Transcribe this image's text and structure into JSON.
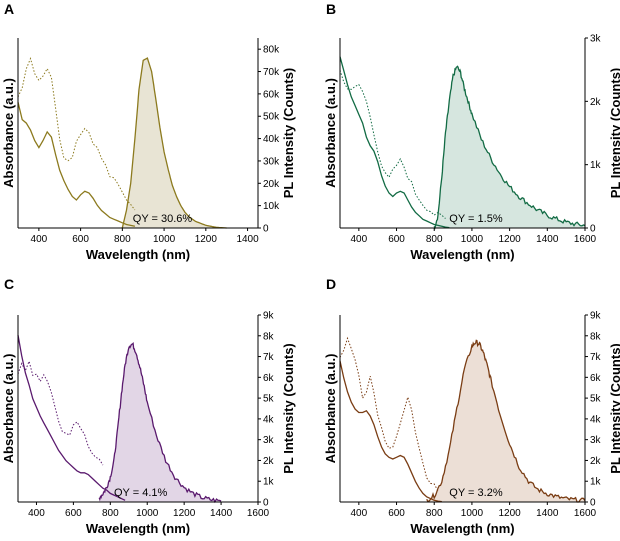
{
  "chart_data": [
    {
      "type": "line",
      "panel": "A",
      "color": "#8c7a1e",
      "fill": "#e8e4d4",
      "xlabel": "Wavelength (nm)",
      "ylabel_left": "Absorbance (a.u.)",
      "ylabel_right": "PL Intensity (Counts)",
      "xlim": [
        300,
        1450
      ],
      "xticks": [
        400,
        600,
        800,
        1000,
        1200,
        1400
      ],
      "ylim_right": [
        0,
        85000
      ],
      "yticks_right": [
        0,
        10000,
        20000,
        30000,
        40000,
        50000,
        60000,
        70000,
        80000
      ],
      "ytick_labels_right": [
        "0",
        "10k",
        "20k",
        "30k",
        "40k",
        "50k",
        "60k",
        "70k",
        "80k"
      ],
      "absorbance": {
        "x": [
          300,
          320,
          340,
          360,
          380,
          400,
          420,
          440,
          460,
          480,
          500,
          520,
          540,
          560,
          580,
          600,
          620,
          640,
          660,
          680,
          700,
          720,
          740,
          760,
          780,
          800,
          820,
          840,
          860
        ],
        "y": [
          0.72,
          0.62,
          0.6,
          0.56,
          0.5,
          0.46,
          0.5,
          0.55,
          0.52,
          0.42,
          0.33,
          0.27,
          0.22,
          0.18,
          0.16,
          0.19,
          0.21,
          0.2,
          0.17,
          0.13,
          0.1,
          0.08,
          0.06,
          0.05,
          0.04,
          0.03,
          0.02,
          0.015,
          0.01
        ]
      },
      "absorbance_dotted": {
        "x": [
          300,
          320,
          340,
          360,
          380,
          400,
          420,
          440,
          460,
          480,
          500,
          520,
          540,
          560,
          580,
          600,
          620,
          640,
          660,
          680,
          700,
          720,
          740,
          760,
          780,
          800,
          820,
          840,
          860
        ],
        "y": [
          0.75,
          0.82,
          0.92,
          0.97,
          0.9,
          0.85,
          0.88,
          0.92,
          0.85,
          0.7,
          0.52,
          0.42,
          0.38,
          0.42,
          0.5,
          0.55,
          0.57,
          0.55,
          0.5,
          0.45,
          0.4,
          0.35,
          0.3,
          0.27,
          0.24,
          0.2,
          0.17,
          0.14,
          0.12
        ]
      },
      "pl": {
        "x": [
          800,
          820,
          840,
          860,
          880,
          900,
          920,
          940,
          960,
          980,
          1000,
          1020,
          1040,
          1060,
          1080,
          1100,
          1120,
          1150,
          1200,
          1250,
          1300
        ],
        "y": [
          0,
          8000,
          20000,
          40000,
          62000,
          75000,
          76000,
          70000,
          58000,
          45000,
          34000,
          26000,
          19000,
          14000,
          10000,
          7000,
          5000,
          3000,
          1200,
          300,
          0
        ]
      },
      "annotation": "QY = 30.6%"
    },
    {
      "type": "line",
      "panel": "B",
      "color": "#126b44",
      "fill": "#d6e6df",
      "xlabel": "Wavelength (nm)",
      "ylabel_left": "Absorbance (a.u.)",
      "ylabel_right": "PL Intensity (Counts)",
      "xlim": [
        300,
        1600
      ],
      "xticks": [
        400,
        600,
        800,
        1000,
        1200,
        1400,
        1600
      ],
      "ylim_right": [
        0,
        3000
      ],
      "yticks_right": [
        0,
        1000,
        2000,
        3000
      ],
      "ytick_labels_right": [
        "0",
        "1k",
        "2k",
        "3k"
      ],
      "absorbance": {
        "x": [
          300,
          320,
          340,
          360,
          380,
          400,
          420,
          440,
          460,
          480,
          500,
          520,
          540,
          560,
          580,
          600,
          620,
          640,
          660,
          680,
          700,
          720,
          740,
          760,
          780,
          800,
          820,
          840,
          860,
          880
        ],
        "y": [
          0.98,
          0.9,
          0.82,
          0.75,
          0.7,
          0.65,
          0.6,
          0.52,
          0.47,
          0.44,
          0.38,
          0.3,
          0.24,
          0.2,
          0.18,
          0.2,
          0.21,
          0.2,
          0.16,
          0.12,
          0.09,
          0.07,
          0.05,
          0.04,
          0.03,
          0.02,
          0.015,
          0.01,
          0.005,
          0.002
        ]
      },
      "absorbance_dotted": {
        "x": [
          300,
          320,
          340,
          360,
          380,
          400,
          420,
          440,
          460,
          480,
          500,
          520,
          540,
          560,
          580,
          600,
          620,
          640,
          660,
          680,
          700,
          720,
          740,
          760,
          780,
          800,
          820,
          840,
          860
        ],
        "y": [
          0.9,
          0.85,
          0.8,
          0.78,
          0.8,
          0.82,
          0.78,
          0.72,
          0.64,
          0.55,
          0.45,
          0.36,
          0.3,
          0.28,
          0.32,
          0.36,
          0.38,
          0.35,
          0.3,
          0.25,
          0.2,
          0.17,
          0.14,
          0.12,
          0.1,
          0.08,
          0.07,
          0.06,
          0.05
        ]
      },
      "pl": {
        "x": [
          800,
          820,
          840,
          860,
          880,
          900,
          920,
          940,
          960,
          980,
          1000,
          1050,
          1100,
          1150,
          1200,
          1250,
          1300,
          1350,
          1400,
          1450,
          1500,
          1550,
          1600
        ],
        "y": [
          0,
          200,
          800,
          1500,
          2000,
          2400,
          2550,
          2450,
          2200,
          2000,
          1800,
          1400,
          1100,
          850,
          650,
          500,
          380,
          280,
          200,
          140,
          90,
          60,
          40
        ]
      },
      "annotation": "QY = 1.5%"
    },
    {
      "type": "line",
      "panel": "C",
      "color": "#5a1a6e",
      "fill": "#e2d6e6",
      "xlabel": "Wavelength (nm)",
      "ylabel_left": "Absorbance (a.u.)",
      "ylabel_right": "PL Intensity (Counts)",
      "xlim": [
        300,
        1600
      ],
      "xticks": [
        400,
        600,
        800,
        1000,
        1200,
        1400,
        1600
      ],
      "ylim_right": [
        0,
        9000
      ],
      "yticks_right": [
        0,
        1000,
        2000,
        3000,
        4000,
        5000,
        6000,
        7000,
        8000,
        9000
      ],
      "ytick_labels_right": [
        "0",
        "1k",
        "2k",
        "3k",
        "4k",
        "5k",
        "6k",
        "7k",
        "8k",
        "9k"
      ],
      "absorbance": {
        "x": [
          300,
          320,
          340,
          360,
          380,
          400,
          420,
          440,
          460,
          480,
          500,
          520,
          540,
          560,
          580,
          600,
          620,
          640,
          660,
          680,
          700,
          720,
          740,
          760,
          780,
          800,
          820,
          840,
          860,
          880
        ],
        "y": [
          0.97,
          0.85,
          0.75,
          0.68,
          0.6,
          0.55,
          0.5,
          0.46,
          0.42,
          0.38,
          0.34,
          0.3,
          0.27,
          0.24,
          0.22,
          0.2,
          0.18,
          0.17,
          0.17,
          0.16,
          0.14,
          0.12,
          0.1,
          0.08,
          0.07,
          0.05,
          0.04,
          0.03,
          0.02,
          0.01
        ]
      },
      "absorbance_dotted": {
        "x": [
          300,
          320,
          340,
          360,
          380,
          400,
          420,
          440,
          460,
          480,
          500,
          520,
          540,
          560,
          580,
          600,
          620,
          640,
          660,
          680,
          700,
          720,
          740,
          760
        ],
        "y": [
          0.75,
          0.8,
          0.78,
          0.82,
          0.74,
          0.76,
          0.7,
          0.75,
          0.72,
          0.62,
          0.55,
          0.48,
          0.42,
          0.38,
          0.4,
          0.44,
          0.46,
          0.43,
          0.38,
          0.34,
          0.3,
          0.28,
          0.24,
          0.2
        ]
      },
      "pl": {
        "x": [
          740,
          760,
          780,
          800,
          820,
          840,
          860,
          880,
          900,
          920,
          940,
          960,
          980,
          1000,
          1050,
          1100,
          1150,
          1200,
          1250,
          1300,
          1350,
          1400
        ],
        "y": [
          200,
          400,
          700,
          1200,
          2000,
          3500,
          5200,
          6600,
          7500,
          7600,
          7200,
          6500,
          5700,
          4800,
          3200,
          2000,
          1200,
          700,
          400,
          200,
          100,
          50
        ]
      },
      "annotation": "QY = 4.1%"
    },
    {
      "type": "line",
      "panel": "D",
      "color": "#7a3d14",
      "fill": "#ecdfd6",
      "xlabel": "Wavelength (nm)",
      "ylabel_left": "Absorbance (a.u.)",
      "ylabel_right": "PL Intensity (Counts)",
      "xlim": [
        300,
        1600
      ],
      "xticks": [
        400,
        600,
        800,
        1000,
        1200,
        1400,
        1600
      ],
      "ylim_right": [
        0,
        9000
      ],
      "yticks_right": [
        0,
        1000,
        2000,
        3000,
        4000,
        5000,
        6000,
        7000,
        8000,
        9000
      ],
      "ytick_labels_right": [
        "0",
        "1k",
        "2k",
        "3k",
        "4k",
        "5k",
        "6k",
        "7k",
        "8k",
        "9k"
      ],
      "absorbance": {
        "x": [
          300,
          320,
          340,
          360,
          380,
          400,
          420,
          440,
          460,
          480,
          500,
          520,
          540,
          560,
          580,
          600,
          620,
          640,
          660,
          680,
          700,
          720,
          740,
          760,
          780,
          800,
          820,
          840
        ],
        "y": [
          0.82,
          0.72,
          0.64,
          0.58,
          0.54,
          0.52,
          0.52,
          0.53,
          0.5,
          0.45,
          0.38,
          0.32,
          0.28,
          0.26,
          0.25,
          0.26,
          0.27,
          0.26,
          0.22,
          0.17,
          0.12,
          0.08,
          0.05,
          0.03,
          0.02,
          0.01,
          0.005,
          0.002
        ]
      },
      "absorbance_dotted": {
        "x": [
          300,
          320,
          340,
          360,
          380,
          400,
          420,
          440,
          460,
          480,
          500,
          520,
          540,
          560,
          580,
          600,
          620,
          640,
          660,
          680,
          700,
          720,
          740,
          760,
          780,
          800,
          820
        ],
        "y": [
          0.85,
          0.9,
          0.94,
          0.9,
          0.82,
          0.72,
          0.62,
          0.65,
          0.72,
          0.65,
          0.52,
          0.42,
          0.34,
          0.3,
          0.32,
          0.38,
          0.45,
          0.55,
          0.6,
          0.55,
          0.42,
          0.3,
          0.22,
          0.16,
          0.12,
          0.1,
          0.08
        ]
      },
      "pl": {
        "x": [
          760,
          800,
          840,
          880,
          920,
          960,
          1000,
          1020,
          1040,
          1060,
          1080,
          1100,
          1150,
          1200,
          1250,
          1300,
          1350,
          1400,
          1450,
          1500,
          1550,
          1600
        ],
        "y": [
          100,
          300,
          1000,
          2500,
          4500,
          6400,
          7500,
          7700,
          7600,
          7200,
          6600,
          5900,
          4200,
          2800,
          1700,
          1000,
          600,
          400,
          250,
          150,
          100,
          60
        ]
      },
      "annotation": "QY = 3.2%"
    }
  ]
}
